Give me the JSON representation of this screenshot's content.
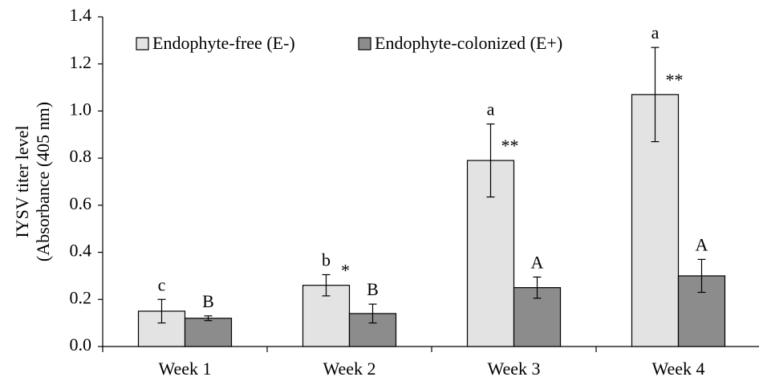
{
  "chart_data": {
    "type": "bar",
    "ylabel": [
      "IYSV titer level",
      "(Absorbance (405 nm)"
    ],
    "categories": [
      "Week 1",
      "Week 2",
      "Week 3",
      "Week 4"
    ],
    "series": [
      {
        "name": "Endophyte-free (E-)",
        "color": "#e3e3e3",
        "values": [
          0.15,
          0.26,
          0.79,
          1.07
        ],
        "errors": [
          0.05,
          0.045,
          0.155,
          0.2
        ],
        "letters": [
          "c",
          "b",
          "a",
          "a"
        ]
      },
      {
        "name": "Endophyte-colonized (E+)",
        "color": "#8c8c8c",
        "values": [
          0.12,
          0.14,
          0.25,
          0.3
        ],
        "errors": [
          0.01,
          0.04,
          0.045,
          0.07
        ],
        "letters": [
          "B",
          "B",
          "A",
          "A"
        ]
      }
    ],
    "significance": [
      null,
      "*",
      "**",
      "**"
    ],
    "ylim": [
      0,
      1.4
    ],
    "yticks": [
      {
        "value": 0,
        "label": "0.0"
      },
      0.2,
      0.4,
      0.6,
      0.8,
      {
        "value": 1,
        "label": "1.0"
      },
      1.2,
      1.4
    ],
    "legend": "top-left"
  }
}
